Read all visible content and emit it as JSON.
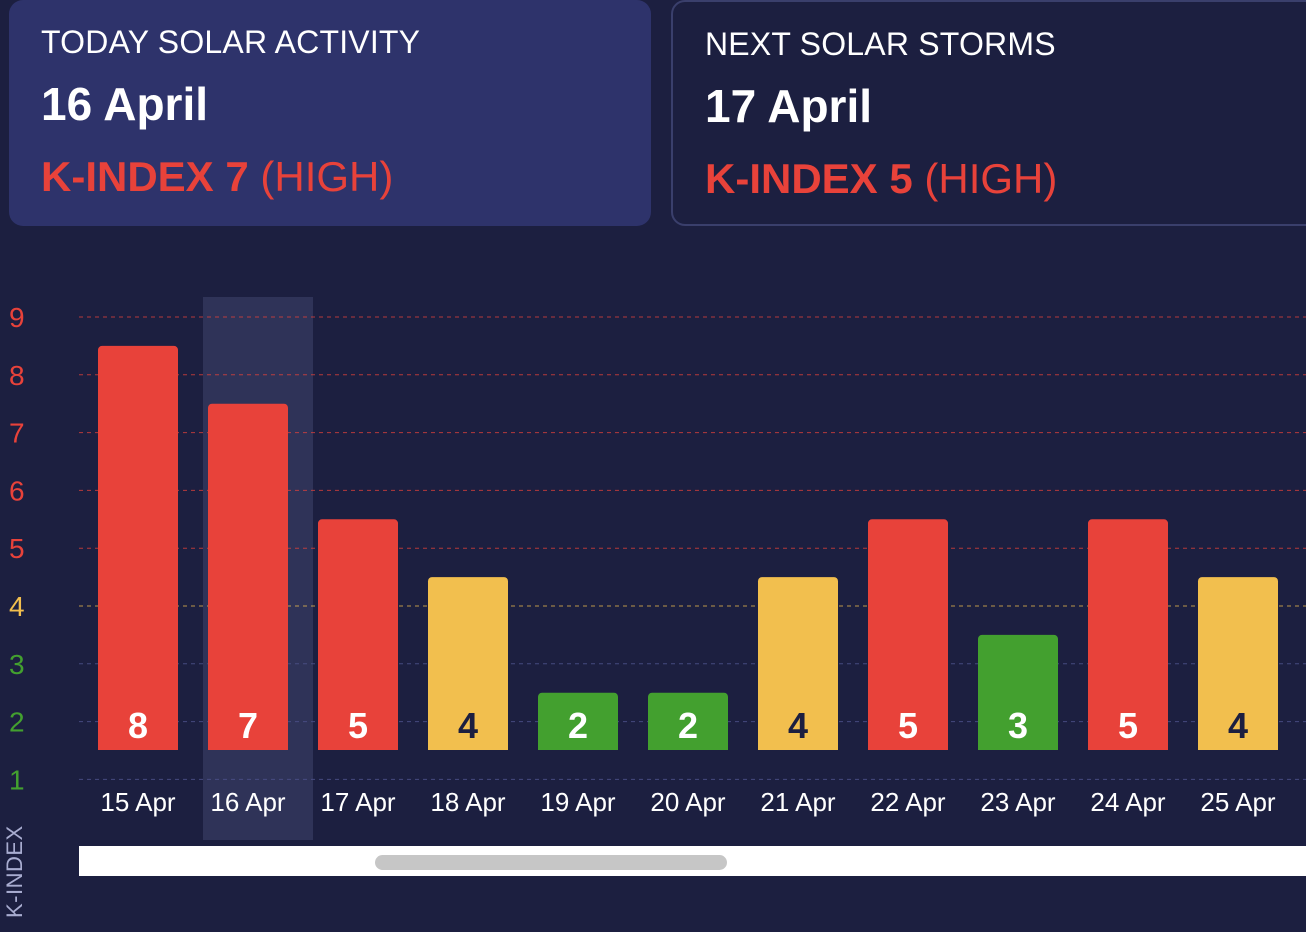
{
  "today": {
    "caption": "TODAY SOLAR ACTIVITY",
    "date": "16 April",
    "k_label": "K-INDEX 7",
    "k_level": "(HIGH)"
  },
  "next": {
    "caption": "NEXT SOLAR STORMS",
    "date": "17 April",
    "k_label": "K-INDEX 5",
    "k_level": "(HIGH)"
  },
  "colors": {
    "high": "#e8423a",
    "moderate": "#f2bf4e",
    "low": "#43a02f",
    "text_dark": "#1c1f40",
    "text_light": "#ffffff"
  },
  "chart_data": {
    "type": "bar",
    "title": "",
    "xlabel": "",
    "ylabel": "K-INDEX",
    "categories": [
      "15 Apr",
      "16 Apr",
      "17 Apr",
      "18 Apr",
      "19 Apr",
      "20 Apr",
      "21 Apr",
      "22 Apr",
      "23 Apr",
      "24 Apr",
      "25 Apr"
    ],
    "values": [
      8,
      7,
      5,
      4,
      2,
      2,
      4,
      5,
      3,
      5,
      4
    ],
    "levels": [
      "high",
      "high",
      "high",
      "moderate",
      "low",
      "low",
      "moderate",
      "high",
      "low",
      "high",
      "moderate"
    ],
    "highlighted_category": "16 Apr",
    "y_ticks": [
      1,
      2,
      3,
      4,
      5,
      6,
      7,
      8,
      9
    ],
    "ylim": [
      1,
      9
    ],
    "grid": true,
    "legend": "none"
  }
}
